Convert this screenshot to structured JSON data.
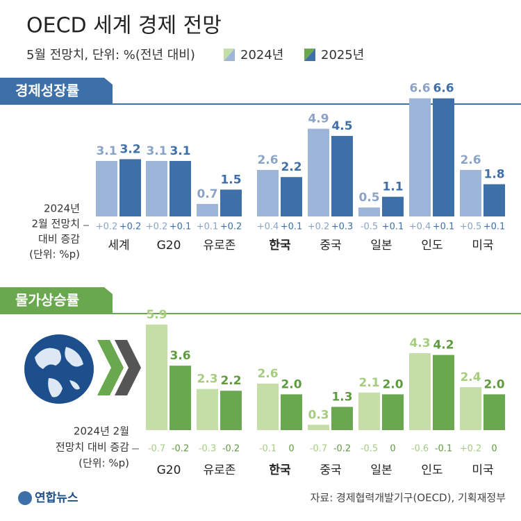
{
  "title": "OECD 세계 경제 전망",
  "subtitle": "5월 전망치, 단위: %(전년 대비)",
  "footer": {
    "logo": "연합뉴스",
    "source": "자료: 경제협력개발기구(OECD), 기획재정부"
  },
  "chart_data": [
    {
      "type": "bar",
      "title": "경제성장률",
      "categories": [
        "세계",
        "G20",
        "유로존",
        "한국",
        "중국",
        "일본",
        "인도",
        "미국"
      ],
      "revision_note": [
        "2024년",
        "2월 전망치",
        "대비 증감",
        "(단위: %p)"
      ],
      "series": [
        {
          "name": "2024년",
          "color": "#9db5d8",
          "label_color": "#8aa3c6",
          "values": [
            3.1,
            3.1,
            0.7,
            2.6,
            4.9,
            0.5,
            6.6,
            2.6
          ],
          "value_labels": [
            "3.1",
            "3.1",
            "0.7",
            "2.6",
            "4.9",
            "0.5",
            "6.6",
            "2.6"
          ],
          "revisions": [
            0.2,
            0.2,
            0.1,
            0.4,
            0.2,
            -0.5,
            0.4,
            0.5
          ],
          "revision_labels": [
            "+0.2",
            "+0.2",
            "+0.1",
            "+0.4",
            "+0.2",
            "-0.5",
            "+0.4",
            "+0.5"
          ]
        },
        {
          "name": "2025년",
          "color": "#3d6fa8",
          "label_color": "#3d6fa8",
          "values": [
            3.2,
            3.1,
            1.5,
            2.2,
            4.5,
            1.1,
            6.6,
            1.8
          ],
          "value_labels": [
            "3.2",
            "3.1",
            "1.5",
            "2.2",
            "4.5",
            "1.1",
            "6.6",
            "1.8"
          ],
          "revisions": [
            0.2,
            0.1,
            0.2,
            0.1,
            0.3,
            0.1,
            0.1,
            0.1
          ],
          "revision_labels": [
            "+0.2",
            "+0.1",
            "+0.2",
            "+0.1",
            "+0.3",
            "+0.1",
            "+0.1",
            "+0.1"
          ]
        }
      ]
    },
    {
      "type": "bar",
      "title": "물가상승률",
      "categories": [
        "G20",
        "유로존",
        "한국",
        "중국",
        "일본",
        "인도",
        "미국"
      ],
      "revision_note": [
        "2024년 2월",
        "전망치 대비 증감",
        "(단위: %p)"
      ],
      "series": [
        {
          "color": "#c5dea8",
          "label_color": "#a6cc80",
          "values": [
            5.9,
            2.3,
            2.6,
            0.3,
            2.1,
            4.3,
            2.4
          ],
          "value_labels": [
            "5.9",
            "2.3",
            "2.6",
            "0.3",
            "2.1",
            "4.3",
            "2.4"
          ],
          "revisions": [
            -0.7,
            -0.3,
            -0.1,
            -0.7,
            -0.5,
            -0.6,
            0.2
          ],
          "revision_labels": [
            "-0.7",
            "-0.3",
            "-0.1",
            "-0.7",
            "-0.5",
            "-0.6",
            "+0.2"
          ]
        },
        {
          "color": "#6aa84f",
          "label_color": "#5e9a3e",
          "values": [
            3.6,
            2.2,
            2.0,
            1.3,
            2.0,
            4.2,
            2.0
          ],
          "value_labels": [
            "3.6",
            "2.2",
            "2.0",
            "1.3",
            "2.0",
            "4.2",
            "2.0"
          ],
          "revisions": [
            -0.2,
            -0.2,
            0,
            -0.2,
            0,
            -0.1,
            0
          ],
          "revision_labels": [
            "-0.2",
            "-0.2",
            "0",
            "-0.2",
            "0",
            "-0.1",
            "0"
          ]
        }
      ]
    }
  ]
}
